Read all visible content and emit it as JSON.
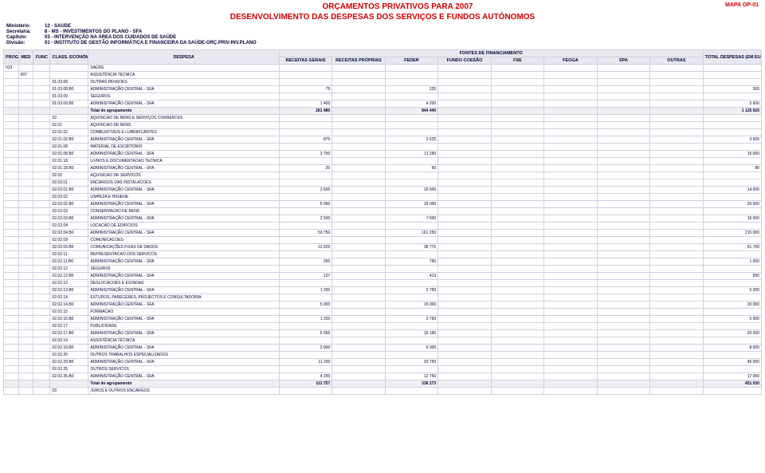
{
  "header": {
    "title": "ORÇAMENTOS PRIVATIVOS PARA 2007",
    "subtitle": "DESENVOLVIMENTO DAS DESPESAS DOS SERVIÇOS E FUNDOS AUTÓNOMOS",
    "mapa": "MAPA OP-01"
  },
  "meta": {
    "ministerio_label": "Ministério:",
    "ministerio_val": "12 - SAUDE",
    "secretaria_label": "Secretaria:",
    "secretaria_val": "8 - MS - INVESTIMENTOS DO PLANO - SFA",
    "capitulo_label": "Capítulo:",
    "capitulo_val": "03 - INTERVENÇÃO NA ÁREA DOS CUIDADOS DE SAÚDE",
    "divisao_label": "Divisão:",
    "divisao_val": "01 - INSTITUTO DE GESTÃO INFORMÁTICA E FINANCEIRA DA SAÚDE-ORÇ.PRIV-INV.PLANO"
  },
  "columns": {
    "prog": "PROG",
    "med": "MED",
    "func": "FUNC",
    "class": "CLASS. ECONÓMICA",
    "despesa": "DESPESA",
    "fontes_group": "FONTES DE FINANCIAMENTO",
    "receitas_gerais": "RECEITAS GERAIS",
    "receitas_proprias": "RECEITAS PRÓPRIAS",
    "feder": "FEDER",
    "fundo_coesao": "FUNDO COESÃO",
    "fse": "FSE",
    "feoga": "FEOGA",
    "spa": "SPA",
    "outras": "OUTRAS",
    "total": "TOTAL DESPESAS (EM EUROS)"
  },
  "rows": [
    {
      "prog": "013",
      "med": "",
      "func": "",
      "class": "",
      "desp": "SAÚDE",
      "rg": "",
      "rp": "",
      "fed": "",
      "fc": "",
      "fse": "",
      "feo": "",
      "spa": "",
      "out": "",
      "tot": ""
    },
    {
      "prog": "",
      "med": "007",
      "func": "",
      "class": "",
      "desp": "ASSISTÊNCIA TÉCNICA",
      "rg": "",
      "rp": "",
      "fed": "",
      "fc": "",
      "fse": "",
      "feo": "",
      "spa": "",
      "out": "",
      "tot": ""
    },
    {
      "prog": "",
      "med": "",
      "func": "",
      "class": "01.03.08",
      "desp": "OUTRAS PENSOES",
      "rg": "",
      "rp": "",
      "fed": "",
      "fc": "",
      "fse": "",
      "feo": "",
      "spa": "",
      "out": "",
      "tot": ""
    },
    {
      "prog": "",
      "med": "",
      "func": "",
      "class": "01.03.08.B0",
      "desp": "ADMINISTRAÇÃO CENTRAL - SFA",
      "rg": "75",
      "rp": "",
      "fed": "225",
      "fc": "",
      "fse": "",
      "feo": "",
      "spa": "",
      "out": "",
      "tot": "300"
    },
    {
      "prog": "",
      "med": "",
      "func": "",
      "class": "01.03.09",
      "desp": "SEGUROS",
      "rg": "",
      "rp": "",
      "fed": "",
      "fc": "",
      "fse": "",
      "feo": "",
      "spa": "",
      "out": "",
      "tot": ""
    },
    {
      "prog": "",
      "med": "",
      "func": "",
      "class": "01.03.09.B0",
      "desp": "ADMINISTRAÇÃO CENTRAL - SFA",
      "rg": "1 400",
      "rp": "",
      "fed": "4 200",
      "fc": "",
      "fse": "",
      "feo": "",
      "spa": "",
      "out": "",
      "tot": "5 600"
    },
    {
      "shade": true,
      "prog": "",
      "med": "",
      "func": "",
      "class": "",
      "desp": "Total do agrupamento",
      "rg": "281 480",
      "rp": "",
      "fed": "844 440",
      "fc": "",
      "fse": "",
      "feo": "",
      "spa": "",
      "out": "",
      "tot": "1 125 920"
    },
    {
      "prog": "",
      "med": "",
      "func": "",
      "class": "02",
      "desp": "AQUISICAO DE BENS E SERVIÇOS CORRENTES",
      "rg": "",
      "rp": "",
      "fed": "",
      "fc": "",
      "fse": "",
      "feo": "",
      "spa": "",
      "out": "",
      "tot": ""
    },
    {
      "prog": "",
      "med": "",
      "func": "",
      "class": "02.01",
      "desp": "AQUISICAO DE BENS",
      "rg": "",
      "rp": "",
      "fed": "",
      "fc": "",
      "fse": "",
      "feo": "",
      "spa": "",
      "out": "",
      "tot": ""
    },
    {
      "prog": "",
      "med": "",
      "func": "",
      "class": "02.01.02",
      "desp": "COMBUSTIVEIS E LUBRIFICANTES",
      "rg": "",
      "rp": "",
      "fed": "",
      "fc": "",
      "fse": "",
      "feo": "",
      "spa": "",
      "out": "",
      "tot": ""
    },
    {
      "prog": "",
      "med": "",
      "func": "",
      "class": "02.01.02.B0",
      "desp": "ADMINISTRAÇÃO CENTRAL - SFA",
      "rg": "875",
      "rp": "",
      "fed": "2 625",
      "fc": "",
      "fse": "",
      "feo": "",
      "spa": "",
      "out": "",
      "tot": "3 500"
    },
    {
      "prog": "",
      "med": "",
      "func": "",
      "class": "02.01.08",
      "desp": "MATERIAL DE ESCRITORIO",
      "rg": "",
      "rp": "",
      "fed": "",
      "fc": "",
      "fse": "",
      "feo": "",
      "spa": "",
      "out": "",
      "tot": ""
    },
    {
      "prog": "",
      "med": "",
      "func": "",
      "class": "02.01.08.B0",
      "desp": "ADMINISTRAÇÃO CENTRAL - SFA",
      "rg": "3 750",
      "rp": "",
      "fed": "11 250",
      "fc": "",
      "fse": "",
      "feo": "",
      "spa": "",
      "out": "",
      "tot": "15 000"
    },
    {
      "prog": "",
      "med": "",
      "func": "",
      "class": "02.01.18",
      "desp": "LIVROS E DOCUMENTACAO TECNICA",
      "rg": "",
      "rp": "",
      "fed": "",
      "fc": "",
      "fse": "",
      "feo": "",
      "spa": "",
      "out": "",
      "tot": ""
    },
    {
      "prog": "",
      "med": "",
      "func": "",
      "class": "02.01.18.B0",
      "desp": "ADMINISTRAÇÃO CENTRAL - SFA",
      "rg": "20",
      "rp": "",
      "fed": "60",
      "fc": "",
      "fse": "",
      "feo": "",
      "spa": "",
      "out": "",
      "tot": "80"
    },
    {
      "prog": "",
      "med": "",
      "func": "",
      "class": "02.02",
      "desp": "AQUISICAO DE SERVICOS",
      "rg": "",
      "rp": "",
      "fed": "",
      "fc": "",
      "fse": "",
      "feo": "",
      "spa": "",
      "out": "",
      "tot": ""
    },
    {
      "prog": "",
      "med": "",
      "func": "",
      "class": "02.02.01",
      "desp": "ENCARGOS DAS INSTALACOES",
      "rg": "",
      "rp": "",
      "fed": "",
      "fc": "",
      "fse": "",
      "feo": "",
      "spa": "",
      "out": "",
      "tot": ""
    },
    {
      "prog": "",
      "med": "",
      "func": "",
      "class": "02.02.01.B0",
      "desp": "ADMINISTRAÇÃO CENTRAL - SFA",
      "rg": "3 500",
      "rp": "",
      "fed": "10 500",
      "fc": "",
      "fse": "",
      "feo": "",
      "spa": "",
      "out": "",
      "tot": "14 000"
    },
    {
      "prog": "",
      "med": "",
      "func": "",
      "class": "02.02.02",
      "desp": "LIMPEZA E HIGIENE",
      "rg": "",
      "rp": "",
      "fed": "",
      "fc": "",
      "fse": "",
      "feo": "",
      "spa": "",
      "out": "",
      "tot": ""
    },
    {
      "prog": "",
      "med": "",
      "func": "",
      "class": "02.02.02.B0",
      "desp": "ADMINISTRAÇÃO CENTRAL - SFA",
      "rg": "5 000",
      "rp": "",
      "fed": "15 000",
      "fc": "",
      "fse": "",
      "feo": "",
      "spa": "",
      "out": "",
      "tot": "20 000"
    },
    {
      "prog": "",
      "med": "",
      "func": "",
      "class": "02.02.03",
      "desp": "CONSERVACAO DE BENS",
      "rg": "",
      "rp": "",
      "fed": "",
      "fc": "",
      "fse": "",
      "feo": "",
      "spa": "",
      "out": "",
      "tot": ""
    },
    {
      "prog": "",
      "med": "",
      "func": "",
      "class": "02.02.03.B0",
      "desp": "ADMINISTRAÇÃO CENTRAL - SFA",
      "rg": "2 500",
      "rp": "",
      "fed": "7 500",
      "fc": "",
      "fse": "",
      "feo": "",
      "spa": "",
      "out": "",
      "tot": "10 000"
    },
    {
      "prog": "",
      "med": "",
      "func": "",
      "class": "02.02.04",
      "desp": "LOCACAO DE EDIFICIOS",
      "rg": "",
      "rp": "",
      "fed": "",
      "fc": "",
      "fse": "",
      "feo": "",
      "spa": "",
      "out": "",
      "tot": ""
    },
    {
      "prog": "",
      "med": "",
      "func": "",
      "class": "02.02.04.B0",
      "desp": "ADMINISTRAÇÃO CENTRAL - SFA",
      "rg": "53 750",
      "rp": "",
      "fed": "161 250",
      "fc": "",
      "fse": "",
      "feo": "",
      "spa": "",
      "out": "",
      "tot": "215 000"
    },
    {
      "prog": "",
      "med": "",
      "func": "",
      "class": "02.02.09",
      "desp": "COMUNICACOES",
      "rg": "",
      "rp": "",
      "fed": "",
      "fc": "",
      "fse": "",
      "feo": "",
      "spa": "",
      "out": "",
      "tot": ""
    },
    {
      "prog": "",
      "med": "",
      "func": "",
      "class": "02.02.09.B0",
      "desp": "COMUNICAÇÕES FIXAS DE DADOS",
      "rg": "12 925",
      "rp": "",
      "fed": "38 775",
      "fc": "",
      "fse": "",
      "feo": "",
      "spa": "",
      "out": "",
      "tot": "51 700"
    },
    {
      "prog": "",
      "med": "",
      "func": "",
      "class": "02.02.11",
      "desp": "REPRESENTACAO DOS SERVICOS",
      "rg": "",
      "rp": "",
      "fed": "",
      "fc": "",
      "fse": "",
      "feo": "",
      "spa": "",
      "out": "",
      "tot": ""
    },
    {
      "prog": "",
      "med": "",
      "func": "",
      "class": "02.02.11.B0",
      "desp": "ADMINISTRAÇÃO CENTRAL - SFA",
      "rg": "250",
      "rp": "",
      "fed": "750",
      "fc": "",
      "fse": "",
      "feo": "",
      "spa": "",
      "out": "",
      "tot": "1 000"
    },
    {
      "prog": "",
      "med": "",
      "func": "",
      "class": "02.02.12",
      "desp": "SEGUROS",
      "rg": "",
      "rp": "",
      "fed": "",
      "fc": "",
      "fse": "",
      "feo": "",
      "spa": "",
      "out": "",
      "tot": ""
    },
    {
      "prog": "",
      "med": "",
      "func": "",
      "class": "02.02.12.B0",
      "desp": "ADMINISTRAÇÃO CENTRAL - SFA",
      "rg": "137",
      "rp": "",
      "fed": "413",
      "fc": "",
      "fse": "",
      "feo": "",
      "spa": "",
      "out": "",
      "tot": "550"
    },
    {
      "prog": "",
      "med": "",
      "func": "",
      "class": "02.02.13",
      "desp": "DESLOCACOES E ESTADAS",
      "rg": "",
      "rp": "",
      "fed": "",
      "fc": "",
      "fse": "",
      "feo": "",
      "spa": "",
      "out": "",
      "tot": ""
    },
    {
      "prog": "",
      "med": "",
      "func": "",
      "class": "02.02.13.B0",
      "desp": "ADMINISTRAÇÃO CENTRAL - SFA",
      "rg": "1 250",
      "rp": "",
      "fed": "3 750",
      "fc": "",
      "fse": "",
      "feo": "",
      "spa": "",
      "out": "",
      "tot": "5 000"
    },
    {
      "prog": "",
      "med": "",
      "func": "",
      "class": "02.02.14",
      "desp": "ESTUDOS, PARECERES, PROJECTOS E CONSULTADORIA",
      "rg": "",
      "rp": "",
      "fed": "",
      "fc": "",
      "fse": "",
      "feo": "",
      "spa": "",
      "out": "",
      "tot": ""
    },
    {
      "prog": "",
      "med": "",
      "func": "",
      "class": "02.02.14.B0",
      "desp": "ADMINISTRAÇÃO CENTRAL - SFA",
      "rg": "5 000",
      "rp": "",
      "fed": "15 000",
      "fc": "",
      "fse": "",
      "feo": "",
      "spa": "",
      "out": "",
      "tot": "20 000"
    },
    {
      "prog": "",
      "med": "",
      "func": "",
      "class": "02.02.15",
      "desp": "FORMACAO",
      "rg": "",
      "rp": "",
      "fed": "",
      "fc": "",
      "fse": "",
      "feo": "",
      "spa": "",
      "out": "",
      "tot": ""
    },
    {
      "prog": "",
      "med": "",
      "func": "",
      "class": "02.02.15.B0",
      "desp": "ADMINISTRAÇÃO CENTRAL - SFA",
      "rg": "1 250",
      "rp": "",
      "fed": "3 750",
      "fc": "",
      "fse": "",
      "feo": "",
      "spa": "",
      "out": "",
      "tot": "5 000"
    },
    {
      "prog": "",
      "med": "",
      "func": "",
      "class": "02.02.17",
      "desp": "PUBLICIDADE",
      "rg": "",
      "rp": "",
      "fed": "",
      "fc": "",
      "fse": "",
      "feo": "",
      "spa": "",
      "out": "",
      "tot": ""
    },
    {
      "prog": "",
      "med": "",
      "func": "",
      "class": "02.02.17.B0",
      "desp": "ADMINISTRAÇÃO CENTRAL - SFA",
      "rg": "5 050",
      "rp": "",
      "fed": "15 150",
      "fc": "",
      "fse": "",
      "feo": "",
      "spa": "",
      "out": "",
      "tot": "20 200"
    },
    {
      "prog": "",
      "med": "",
      "func": "",
      "class": "02.02.19",
      "desp": "ASSISTÊNCIA TÉCNICA",
      "rg": "",
      "rp": "",
      "fed": "",
      "fc": "",
      "fse": "",
      "feo": "",
      "spa": "",
      "out": "",
      "tot": ""
    },
    {
      "prog": "",
      "med": "",
      "func": "",
      "class": "02.02.19.B0",
      "desp": "ADMINISTRAÇÃO CENTRAL - SFA",
      "rg": "2 000",
      "rp": "",
      "fed": "6 000",
      "fc": "",
      "fse": "",
      "feo": "",
      "spa": "",
      "out": "",
      "tot": "8 000"
    },
    {
      "prog": "",
      "med": "",
      "func": "",
      "class": "02.02.20",
      "desp": "OUTROS TRABALHOS ESPECIALIZADOS",
      "rg": "",
      "rp": "",
      "fed": "",
      "fc": "",
      "fse": "",
      "feo": "",
      "spa": "",
      "out": "",
      "tot": ""
    },
    {
      "prog": "",
      "med": "",
      "func": "",
      "class": "02.02.20.B0",
      "desp": "ADMINISTRAÇÃO CENTRAL - SFA",
      "rg": "11 250",
      "rp": "",
      "fed": "33 750",
      "fc": "",
      "fse": "",
      "feo": "",
      "spa": "",
      "out": "",
      "tot": "45 000"
    },
    {
      "prog": "",
      "med": "",
      "func": "",
      "class": "02.02.25",
      "desp": "OUTROS SERVICOS",
      "rg": "",
      "rp": "",
      "fed": "",
      "fc": "",
      "fse": "",
      "feo": "",
      "spa": "",
      "out": "",
      "tot": ""
    },
    {
      "prog": "",
      "med": "",
      "func": "",
      "class": "02.02.25.B0",
      "desp": "ADMINISTRAÇÃO CENTRAL - SFA",
      "rg": "4 250",
      "rp": "",
      "fed": "12 750",
      "fc": "",
      "fse": "",
      "feo": "",
      "spa": "",
      "out": "",
      "tot": "17 000"
    },
    {
      "shade": true,
      "prog": "",
      "med": "",
      "func": "",
      "class": "",
      "desp": "Total do agrupamento",
      "rg": "112 757",
      "rp": "",
      "fed": "338 273",
      "fc": "",
      "fse": "",
      "feo": "",
      "spa": "",
      "out": "",
      "tot": "451 030"
    },
    {
      "prog": "",
      "med": "",
      "func": "",
      "class": "03",
      "desp": "JUROS E OUTROS ENCARGOS",
      "rg": "",
      "rp": "",
      "fed": "",
      "fc": "",
      "fse": "",
      "feo": "",
      "spa": "",
      "out": "",
      "tot": ""
    }
  ]
}
